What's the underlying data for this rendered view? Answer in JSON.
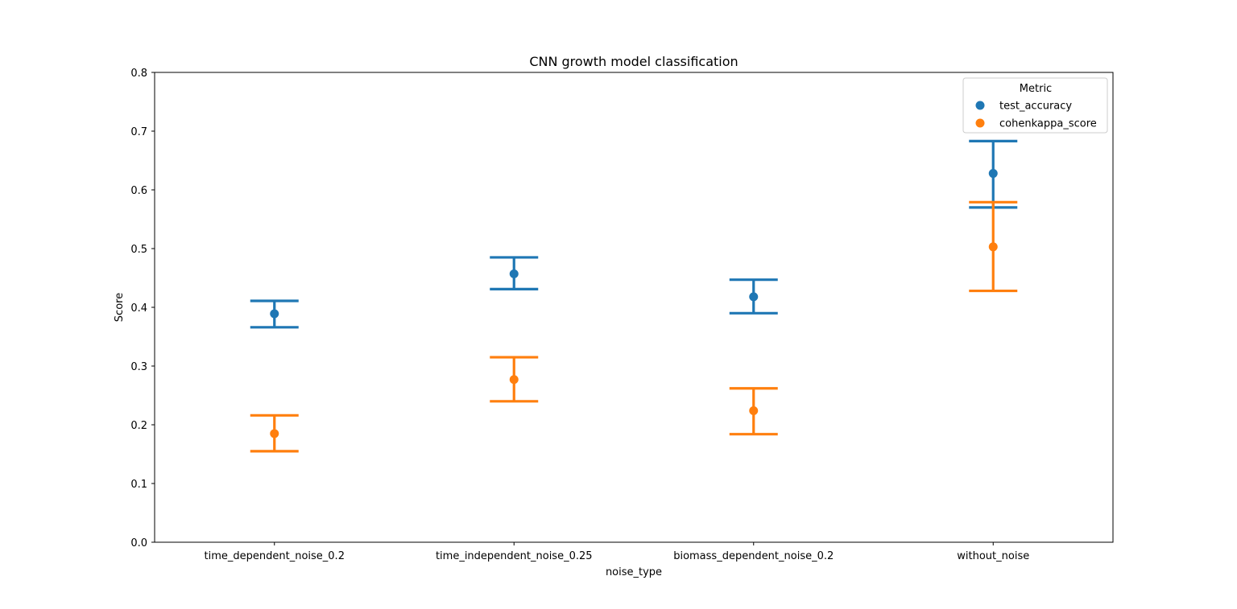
{
  "chart_data": {
    "type": "pointplot",
    "title": "CNN growth model classification",
    "xlabel": "noise_type",
    "ylabel": "Score",
    "ylim": [
      0,
      0.8
    ],
    "yticks": [
      "0.0",
      "0.1",
      "0.2",
      "0.3",
      "0.4",
      "0.5",
      "0.6",
      "0.7",
      "0.8"
    ],
    "categories": [
      "time_dependent_noise_0.2",
      "time_independent_noise_0.25",
      "biomass_dependent_noise_0.2",
      "without_noise"
    ],
    "legend": {
      "title": "Metric",
      "position": "upper right"
    },
    "series": [
      {
        "name": "test_accuracy",
        "color": "#1f77b4",
        "values": [
          0.389,
          0.457,
          0.418,
          0.628
        ],
        "ci_low": [
          0.366,
          0.431,
          0.39,
          0.57
        ],
        "ci_high": [
          0.411,
          0.485,
          0.447,
          0.683
        ]
      },
      {
        "name": "cohenkappa_score",
        "color": "#ff7f0e",
        "values": [
          0.185,
          0.277,
          0.224,
          0.503
        ],
        "ci_low": [
          0.155,
          0.24,
          0.184,
          0.428
        ],
        "ci_high": [
          0.216,
          0.315,
          0.262,
          0.579
        ]
      }
    ]
  }
}
